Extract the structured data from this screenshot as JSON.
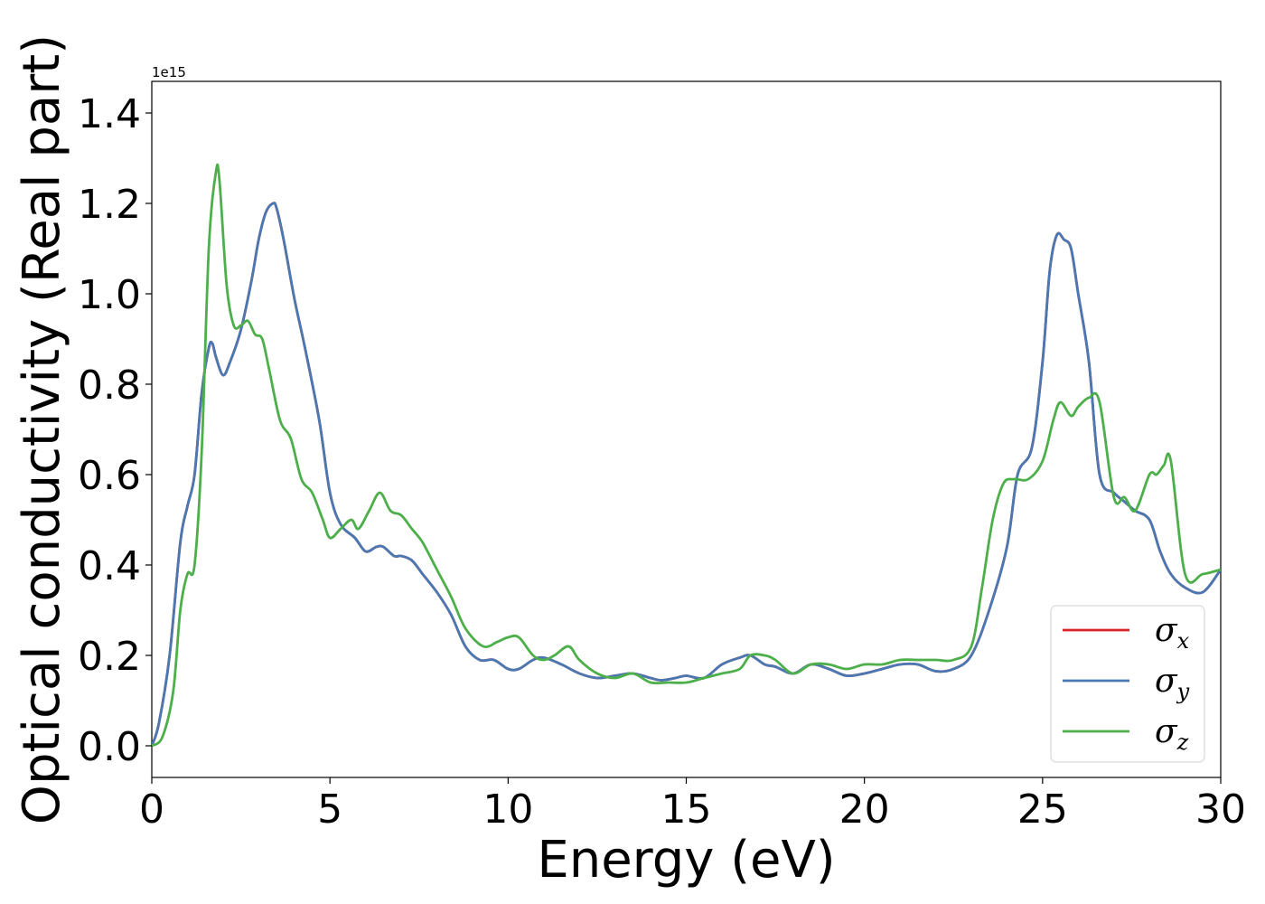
{
  "chart_data": {
    "type": "line",
    "xlabel": "Energy (eV)",
    "ylabel": "Optical conductivity (Real part)",
    "y_offset_label": "1e15",
    "xlim": [
      0,
      30
    ],
    "ylim": [
      -0.07,
      1.47
    ],
    "xticks": [
      0,
      5,
      10,
      15,
      20,
      25,
      30
    ],
    "yticks": [
      0.0,
      0.2,
      0.4,
      0.6,
      0.8,
      1.0,
      1.2,
      1.4
    ],
    "xtick_labels": [
      "0",
      "5",
      "10",
      "15",
      "20",
      "25",
      "30"
    ],
    "ytick_labels": [
      "0.0",
      "0.2",
      "0.4",
      "0.6",
      "0.8",
      "1.0",
      "1.2",
      "1.4"
    ],
    "grid": false,
    "legend_position": "lower-right",
    "series": [
      {
        "name": "σx",
        "symbol": "σ",
        "subscript": "x",
        "color": "#d62728",
        "x": [
          0,
          0.2,
          0.5,
          0.8,
          1.0,
          1.2,
          1.4,
          1.6,
          1.7,
          1.8,
          2.0,
          2.2,
          2.5,
          2.8,
          3.0,
          3.2,
          3.4,
          3.5,
          3.7,
          4.0,
          4.3,
          4.7,
          5.0,
          5.3,
          5.7,
          6.0,
          6.3,
          6.5,
          6.8,
          7.0,
          7.3,
          7.6,
          8.0,
          8.4,
          8.8,
          9.2,
          9.6,
          10.0,
          10.3,
          10.7,
          11.0,
          11.5,
          12.0,
          12.5,
          13.0,
          13.5,
          14.0,
          14.3,
          14.7,
          15.0,
          15.5,
          16.0,
          16.5,
          16.8,
          17.2,
          17.5,
          18.0,
          18.5,
          19.0,
          19.5,
          20.0,
          20.5,
          21.0,
          21.5,
          22.0,
          22.5,
          23.0,
          23.5,
          24.0,
          24.3,
          24.7,
          25.0,
          25.2,
          25.4,
          25.6,
          25.8,
          26.0,
          26.3,
          26.6,
          27.0,
          27.3,
          27.6,
          28.0,
          28.3,
          28.6,
          29.0,
          29.5,
          30.0
        ],
        "y": [
          0.0,
          0.05,
          0.2,
          0.45,
          0.53,
          0.6,
          0.78,
          0.88,
          0.89,
          0.86,
          0.82,
          0.85,
          0.92,
          1.03,
          1.12,
          1.18,
          1.2,
          1.19,
          1.12,
          0.99,
          0.88,
          0.72,
          0.56,
          0.49,
          0.46,
          0.43,
          0.44,
          0.44,
          0.42,
          0.42,
          0.41,
          0.38,
          0.34,
          0.29,
          0.22,
          0.19,
          0.19,
          0.17,
          0.17,
          0.19,
          0.195,
          0.18,
          0.16,
          0.15,
          0.155,
          0.16,
          0.15,
          0.145,
          0.15,
          0.155,
          0.15,
          0.18,
          0.195,
          0.2,
          0.18,
          0.175,
          0.16,
          0.18,
          0.17,
          0.155,
          0.16,
          0.17,
          0.18,
          0.18,
          0.165,
          0.17,
          0.2,
          0.3,
          0.44,
          0.6,
          0.66,
          0.85,
          1.05,
          1.13,
          1.12,
          1.1,
          1.0,
          0.85,
          0.6,
          0.56,
          0.54,
          0.52,
          0.5,
          0.43,
          0.38,
          0.35,
          0.34,
          0.39
        ]
      },
      {
        "name": "σy",
        "symbol": "σ",
        "subscript": "y",
        "color": "#4a78b2",
        "x": [
          0,
          0.2,
          0.5,
          0.8,
          1.0,
          1.2,
          1.4,
          1.6,
          1.7,
          1.8,
          2.0,
          2.2,
          2.5,
          2.8,
          3.0,
          3.2,
          3.4,
          3.5,
          3.7,
          4.0,
          4.3,
          4.7,
          5.0,
          5.3,
          5.7,
          6.0,
          6.3,
          6.5,
          6.8,
          7.0,
          7.3,
          7.6,
          8.0,
          8.4,
          8.8,
          9.2,
          9.6,
          10.0,
          10.3,
          10.7,
          11.0,
          11.5,
          12.0,
          12.5,
          13.0,
          13.5,
          14.0,
          14.3,
          14.7,
          15.0,
          15.5,
          16.0,
          16.5,
          16.8,
          17.2,
          17.5,
          18.0,
          18.5,
          19.0,
          19.5,
          20.0,
          20.5,
          21.0,
          21.5,
          22.0,
          22.5,
          23.0,
          23.5,
          24.0,
          24.3,
          24.7,
          25.0,
          25.2,
          25.4,
          25.6,
          25.8,
          26.0,
          26.3,
          26.6,
          27.0,
          27.3,
          27.6,
          28.0,
          28.3,
          28.6,
          29.0,
          29.5,
          30.0
        ],
        "y": [
          0.0,
          0.05,
          0.2,
          0.45,
          0.53,
          0.6,
          0.78,
          0.88,
          0.89,
          0.86,
          0.82,
          0.85,
          0.92,
          1.03,
          1.12,
          1.18,
          1.2,
          1.19,
          1.12,
          0.99,
          0.88,
          0.72,
          0.56,
          0.49,
          0.46,
          0.43,
          0.44,
          0.44,
          0.42,
          0.42,
          0.41,
          0.38,
          0.34,
          0.29,
          0.22,
          0.19,
          0.19,
          0.17,
          0.17,
          0.19,
          0.195,
          0.18,
          0.16,
          0.15,
          0.155,
          0.16,
          0.15,
          0.145,
          0.15,
          0.155,
          0.15,
          0.18,
          0.195,
          0.2,
          0.18,
          0.175,
          0.16,
          0.18,
          0.17,
          0.155,
          0.16,
          0.17,
          0.18,
          0.18,
          0.165,
          0.17,
          0.2,
          0.3,
          0.44,
          0.6,
          0.66,
          0.85,
          1.05,
          1.13,
          1.12,
          1.1,
          1.0,
          0.85,
          0.6,
          0.56,
          0.54,
          0.52,
          0.5,
          0.43,
          0.38,
          0.35,
          0.34,
          0.39
        ]
      },
      {
        "name": "σz",
        "symbol": "σ",
        "subscript": "z",
        "color": "#4daf4a",
        "x": [
          0,
          0.3,
          0.6,
          0.8,
          1.0,
          1.2,
          1.4,
          1.6,
          1.8,
          1.9,
          2.1,
          2.3,
          2.5,
          2.7,
          2.9,
          3.1,
          3.3,
          3.6,
          3.9,
          4.2,
          4.5,
          4.8,
          5.0,
          5.3,
          5.6,
          5.8,
          6.1,
          6.4,
          6.7,
          7.0,
          7.3,
          7.6,
          8.0,
          8.4,
          8.8,
          9.3,
          9.7,
          10.0,
          10.3,
          10.7,
          11.0,
          11.3,
          11.7,
          12.0,
          12.5,
          13.0,
          13.5,
          14.0,
          14.5,
          15.0,
          15.5,
          16.0,
          16.5,
          16.8,
          17.2,
          17.5,
          18.0,
          18.5,
          19.0,
          19.5,
          20.0,
          20.5,
          21.0,
          21.5,
          22.0,
          22.5,
          23.0,
          23.3,
          23.6,
          23.9,
          24.2,
          24.6,
          25.0,
          25.3,
          25.5,
          25.8,
          26.0,
          26.3,
          26.6,
          27.0,
          27.3,
          27.6,
          28.0,
          28.2,
          28.4,
          28.6,
          29.0,
          29.5,
          30.0
        ],
        "y": [
          0.0,
          0.02,
          0.12,
          0.3,
          0.38,
          0.4,
          0.65,
          1.1,
          1.27,
          1.25,
          1.02,
          0.93,
          0.93,
          0.94,
          0.91,
          0.9,
          0.83,
          0.72,
          0.68,
          0.59,
          0.56,
          0.5,
          0.46,
          0.48,
          0.5,
          0.48,
          0.52,
          0.56,
          0.52,
          0.51,
          0.48,
          0.45,
          0.39,
          0.33,
          0.26,
          0.22,
          0.23,
          0.24,
          0.24,
          0.2,
          0.19,
          0.2,
          0.22,
          0.19,
          0.16,
          0.15,
          0.16,
          0.14,
          0.14,
          0.14,
          0.15,
          0.16,
          0.17,
          0.2,
          0.2,
          0.19,
          0.16,
          0.18,
          0.18,
          0.17,
          0.18,
          0.18,
          0.19,
          0.19,
          0.19,
          0.19,
          0.22,
          0.35,
          0.5,
          0.58,
          0.59,
          0.59,
          0.63,
          0.72,
          0.76,
          0.73,
          0.75,
          0.77,
          0.76,
          0.55,
          0.55,
          0.52,
          0.6,
          0.6,
          0.62,
          0.63,
          0.38,
          0.38,
          0.39
        ]
      }
    ]
  }
}
